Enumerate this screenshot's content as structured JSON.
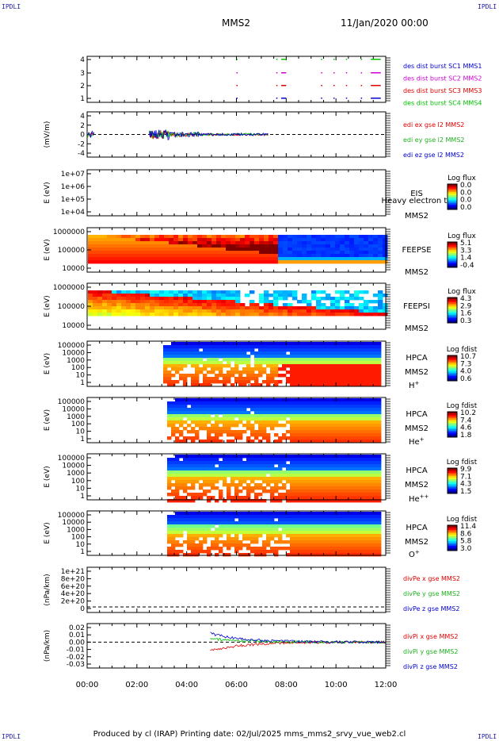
{
  "corners": [
    "IPDLI",
    "IPDLI",
    "IPDLI",
    "IPDLI"
  ],
  "header": {
    "spacecraft": "MMS2",
    "date": "11/Jan/2020 00:00"
  },
  "footer": "Produced by cl (IRAP)   Printing date: 02/Jul/2025   mms_mms2_srvy_vue_web2.cl",
  "time_axis": {
    "ticks": [
      "00:00",
      "02:00",
      "04:00",
      "06:00",
      "08:00",
      "10:00",
      "12:00"
    ],
    "range_hours": [
      0,
      12
    ]
  },
  "colors": {
    "red": "#e00000",
    "green": "#00c000",
    "blue": "#0000d0",
    "magenta": "#d000d0",
    "dark_red": "#c00000",
    "green_text": "#20b020"
  },
  "chart_data": [
    {
      "type": "line",
      "panel": "burst",
      "yticks": [
        "4",
        "3",
        "2",
        "1"
      ],
      "ylim": [
        0.5,
        4.5
      ],
      "legend": [
        "des dist burst SC1 MMS1",
        "des dist burst SC2 MMS2",
        "des dist burst SC3 MMS3",
        "des dist burst SC4 MMS4"
      ],
      "legend_colors": [
        "#0000d0",
        "#d000d0",
        "#e00000",
        "#00c000"
      ]
    },
    {
      "type": "line",
      "panel": "edi",
      "ylabel": "(mV/m)",
      "yticks": [
        "4",
        "2",
        "0",
        "-2",
        "-4"
      ],
      "ylim": [
        -4.5,
        4.5
      ],
      "legend": [
        "edi ex gse l2 MMS2",
        "edi ey gse l2 MMS2",
        "edi ez gse l2 MMS2"
      ],
      "legend_colors": [
        "#e00000",
        "#20b020",
        "#0000d0"
      ]
    },
    {
      "type": "heatmap",
      "panel": "eis",
      "ylabel": "E (eV)",
      "yticks": [
        "1e+07",
        "1e+06",
        "1e+05",
        "1e+04"
      ],
      "label_lines": [
        "EIS",
        "Heavy electron to",
        "MMS2"
      ],
      "colorbar": {
        "title": "Log flux",
        "ticks": [
          "0.0",
          "0.0",
          "0.0",
          "0.0"
        ]
      }
    },
    {
      "type": "heatmap",
      "panel": "feepse",
      "ylabel": "E (eV)",
      "yticks": [
        "1000000",
        "100000",
        "10000"
      ],
      "label_lines": [
        "FEEPSE",
        "MMS2"
      ],
      "colorbar": {
        "title": "Log flux",
        "ticks": [
          "5.1",
          "3.3",
          "1.4",
          "-0.4"
        ]
      }
    },
    {
      "type": "heatmap",
      "panel": "feepsi",
      "ylabel": "E (eV)",
      "yticks": [
        "1000000",
        "100000",
        "10000"
      ],
      "label_lines": [
        "FEEPSI",
        "MMS2"
      ],
      "colorbar": {
        "title": "Log flux",
        "ticks": [
          "4.3",
          "2.9",
          "1.6",
          "0.3"
        ]
      }
    },
    {
      "type": "heatmap",
      "panel": "hpca_h",
      "ylabel": "E (eV)",
      "yticks": [
        "100000",
        "10000",
        "1000",
        "100",
        "10",
        "1"
      ],
      "label_lines": [
        "HPCA",
        "MMS2"
      ],
      "species": "H",
      "species_sup": "+",
      "colorbar": {
        "title": "Log fdist",
        "ticks": [
          "10.7",
          "7.3",
          "4.0",
          "0.6"
        ]
      }
    },
    {
      "type": "heatmap",
      "panel": "hpca_he",
      "ylabel": "E (eV)",
      "yticks": [
        "100000",
        "10000",
        "1000",
        "100",
        "10",
        "1"
      ],
      "label_lines": [
        "HPCA",
        "MMS2"
      ],
      "species": "He",
      "species_sup": "+",
      "colorbar": {
        "title": "Log fdist",
        "ticks": [
          "10.2",
          "7.4",
          "4.6",
          "1.8"
        ]
      }
    },
    {
      "type": "heatmap",
      "panel": "hpca_hepp",
      "ylabel": "E (eV)",
      "yticks": [
        "100000",
        "10000",
        "1000",
        "100",
        "10",
        "1"
      ],
      "label_lines": [
        "HPCA",
        "MMS2"
      ],
      "species": "He",
      "species_sup": "++",
      "colorbar": {
        "title": "Log fdist",
        "ticks": [
          "9.9",
          "7.1",
          "4.3",
          "1.5"
        ]
      }
    },
    {
      "type": "heatmap",
      "panel": "hpca_o",
      "ylabel": "E (eV)",
      "yticks": [
        "100000",
        "10000",
        "1000",
        "100",
        "10",
        "1"
      ],
      "label_lines": [
        "HPCA",
        "MMS2"
      ],
      "species": "O",
      "species_sup": "+",
      "colorbar": {
        "title": "Log fdist",
        "ticks": [
          "11.4",
          "8.6",
          "5.8",
          "3.0"
        ]
      }
    },
    {
      "type": "line",
      "panel": "divpe",
      "ylabel": "(nPa/km)",
      "yticks": [
        "1e+21",
        "8e+20",
        "6e+20",
        "4e+20",
        "2e+20",
        "0"
      ],
      "legend": [
        "divPe x gse MMS2",
        "divPe y gse MMS2",
        "divPe z gse MMS2"
      ],
      "legend_colors": [
        "#e00000",
        "#20b020",
        "#0000d0"
      ]
    },
    {
      "type": "line",
      "panel": "divpi",
      "ylabel": "(nPa/km)",
      "yticks": [
        "0.02",
        "0.01",
        "0.00",
        "-0.01",
        "-0.02",
        "-0.03"
      ],
      "legend": [
        "divPi x gse MMS2",
        "divPi y gse MMS2",
        "divPi z gse MMS2"
      ],
      "legend_colors": [
        "#e00000",
        "#20b020",
        "#0000d0"
      ]
    }
  ]
}
